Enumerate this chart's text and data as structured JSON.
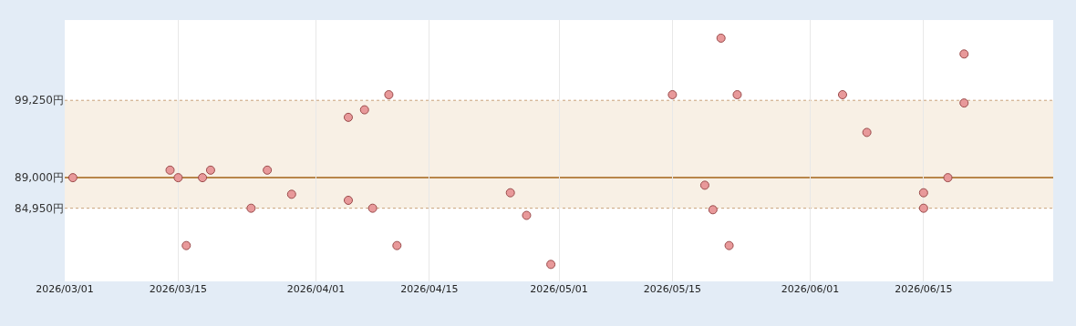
{
  "chart_data": {
    "type": "scatter",
    "x": [
      "2026-03-02",
      "2026-03-14",
      "2026-03-15",
      "2026-03-16",
      "2026-03-18",
      "2026-03-19",
      "2026-03-24",
      "2026-03-26",
      "2026-03-29",
      "2026-04-05",
      "2026-04-05",
      "2026-04-07",
      "2026-04-08",
      "2026-04-10",
      "2026-04-11",
      "2026-04-25",
      "2026-04-27",
      "2026-04-30",
      "2026-05-15",
      "2026-05-19",
      "2026-05-20",
      "2026-05-21",
      "2026-05-22",
      "2026-05-23",
      "2026-06-05",
      "2026-06-08",
      "2026-06-15",
      "2026-06-15",
      "2026-06-18",
      "2026-06-20",
      "2026-06-20"
    ],
    "series": [
      {
        "color": "#e8999a",
        "values": [
          89000,
          90000,
          89000,
          80000,
          89000,
          90000,
          84950,
          90000,
          86800,
          86000,
          97000,
          98000,
          84950,
          100000,
          80000,
          87000,
          84000,
          77500,
          100000,
          88000,
          84750,
          107500,
          80000,
          100000,
          100000,
          95000,
          87000,
          84950,
          89000,
          98900,
          105400
        ]
      }
    ],
    "marker": "circle",
    "xlim": [
      "2026-03-01",
      "2026-07-01"
    ],
    "xticks": [
      {
        "value": "2026-03-01",
        "label": "2026/03/01"
      },
      {
        "value": "2026-03-15",
        "label": "2026/03/15"
      },
      {
        "value": "2026-04-01",
        "label": "2026/04/01"
      },
      {
        "value": "2026-04-15",
        "label": "2026/04/15"
      },
      {
        "value": "2026-05-01",
        "label": "2026/05/01"
      },
      {
        "value": "2026-05-15",
        "label": "2026/05/15"
      },
      {
        "value": "2026-06-01",
        "label": "2026/06/01"
      },
      {
        "value": "2026-06-15",
        "label": "2026/06/15"
      }
    ],
    "ylim": [
      75250,
      109900
    ],
    "yticks": [
      {
        "value": 84950,
        "label": "84,950円"
      },
      {
        "value": 89000,
        "label": "89,000円"
      },
      {
        "value": 99250,
        "label": "99,250円"
      }
    ],
    "grid": "x",
    "bands": [
      {
        "axis": "y",
        "from": 84950,
        "to": 99250,
        "color": "#f8f0e5"
      }
    ],
    "ref_lines": [
      {
        "axis": "y",
        "value": 99250,
        "color": "#c8a07a",
        "line_style": "dashed"
      },
      {
        "axis": "y",
        "value": 89000,
        "color": "#b8864a",
        "line_style": "solid"
      },
      {
        "axis": "y",
        "value": 84950,
        "color": "#c8a07a",
        "line_style": "dashed"
      }
    ]
  }
}
